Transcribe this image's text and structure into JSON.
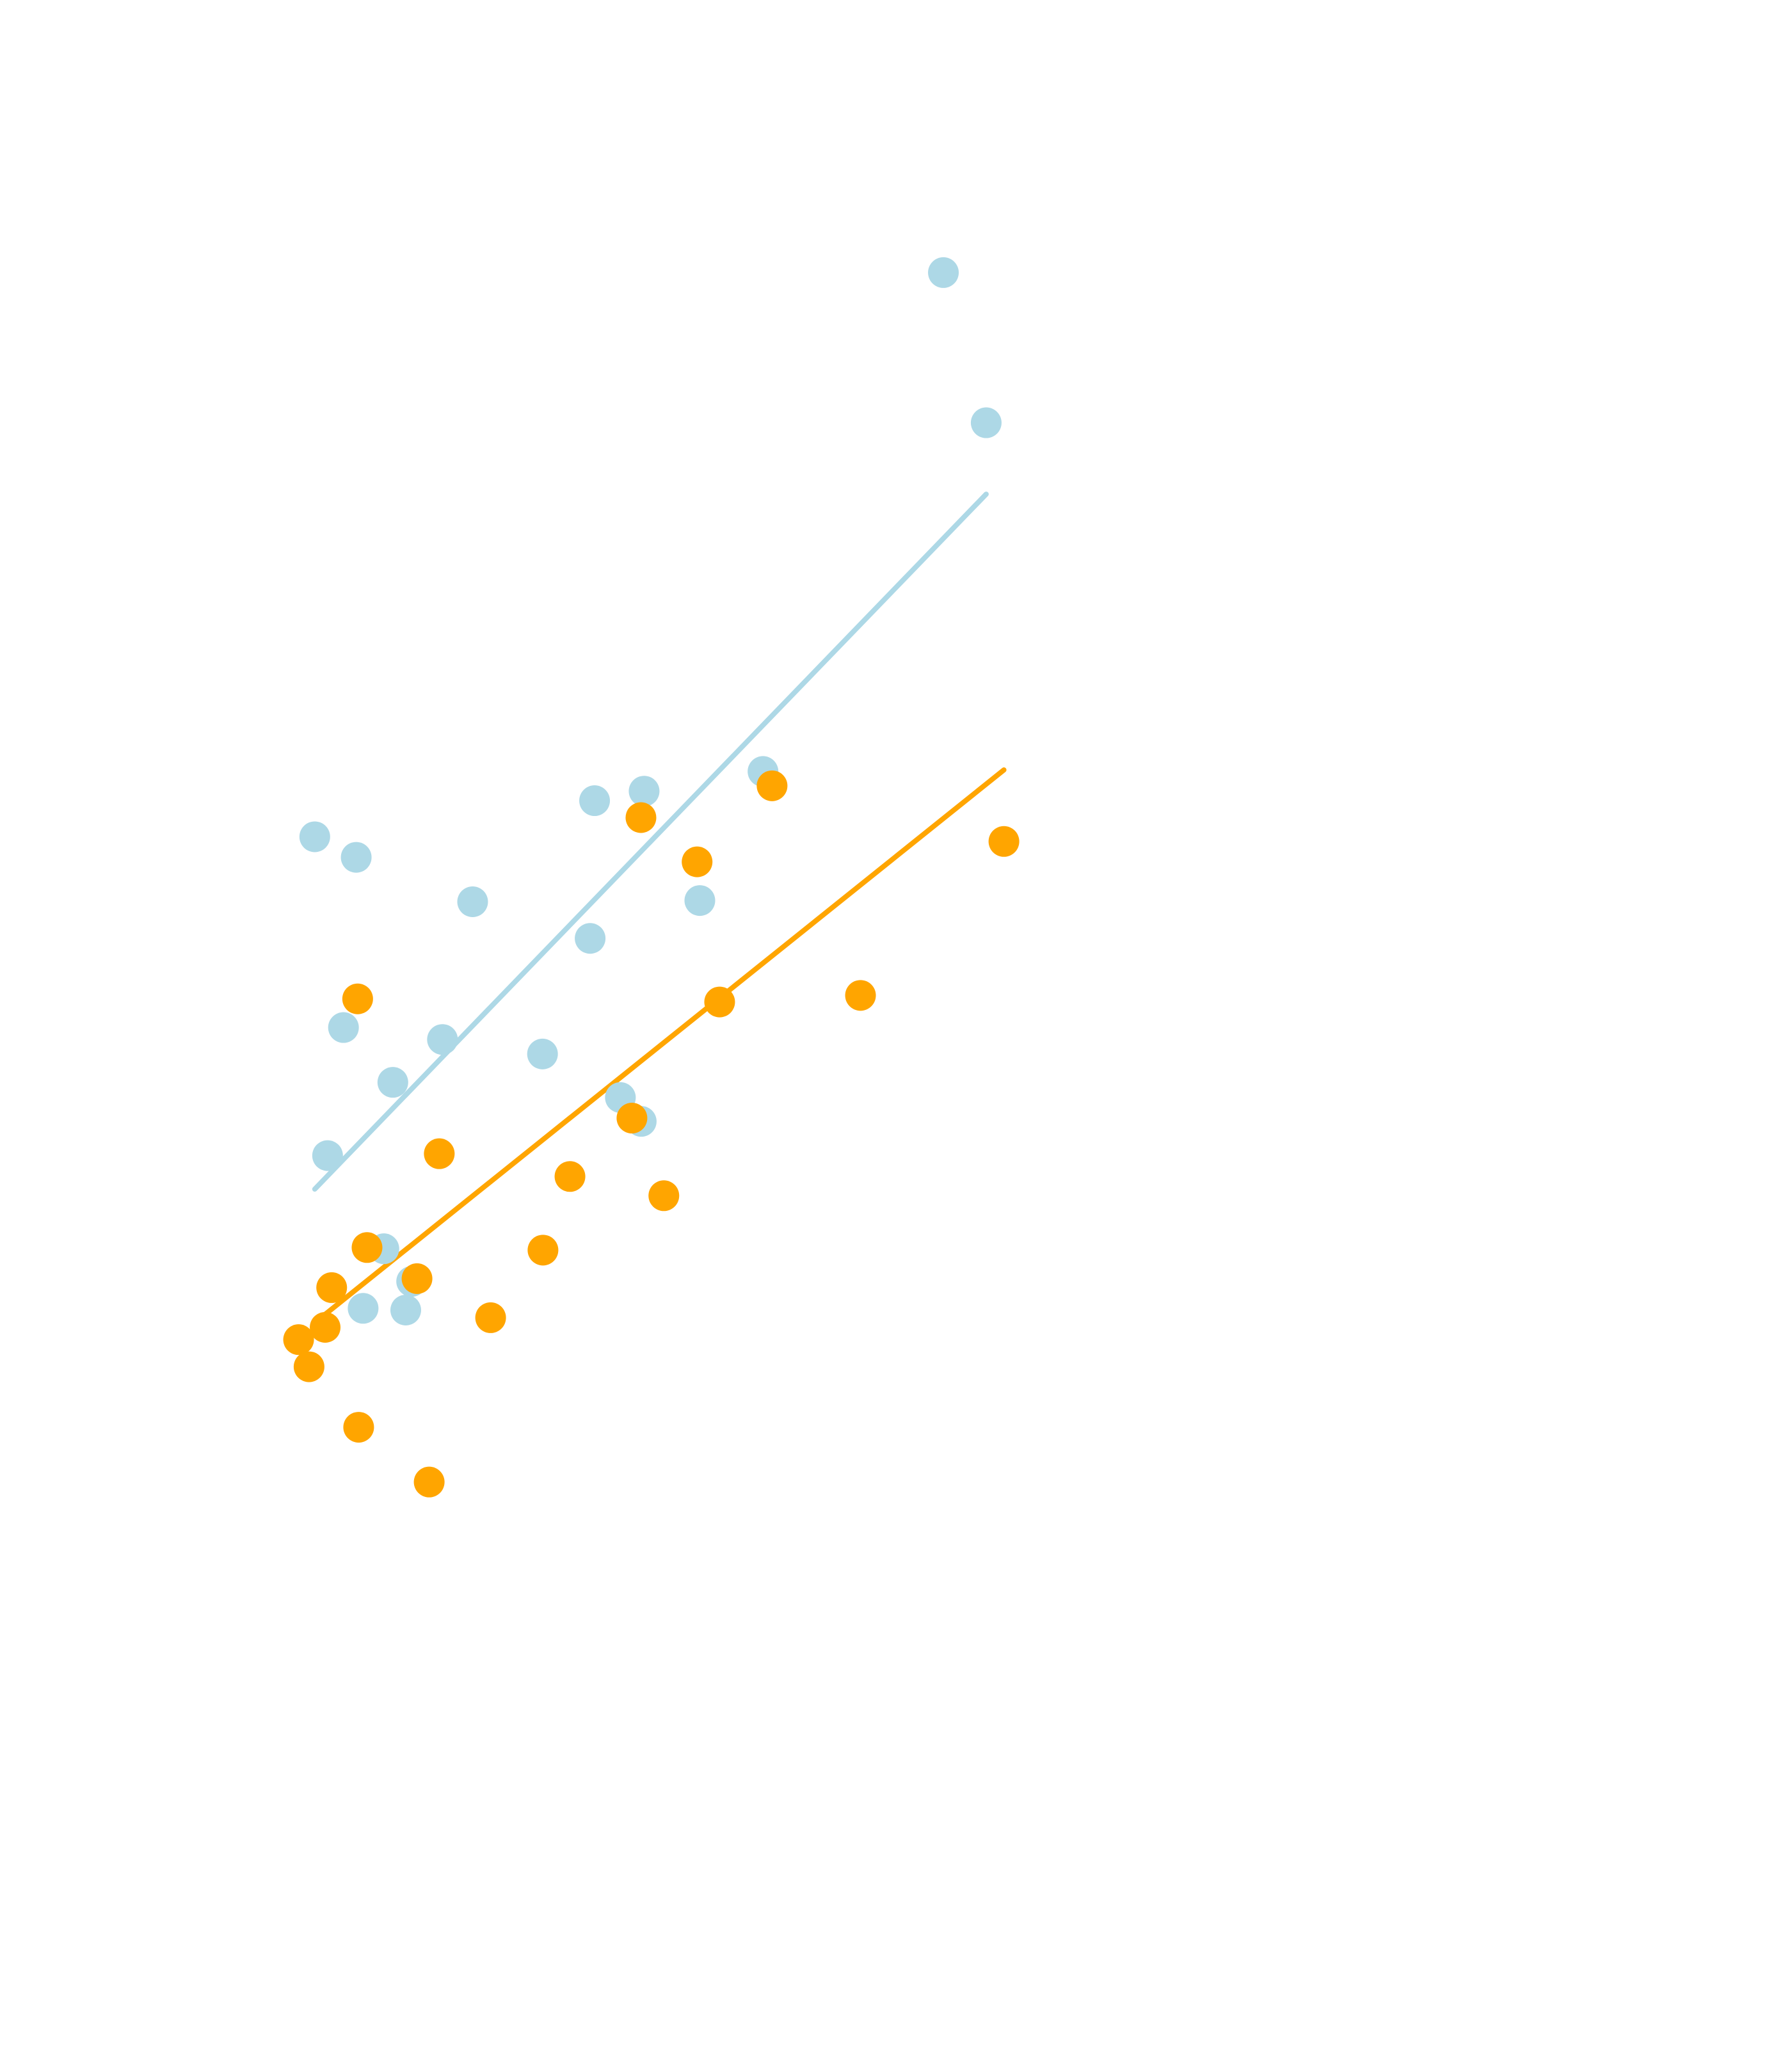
{
  "chart_data": {
    "type": "scatter",
    "title": "",
    "xlabel": "",
    "ylabel": "",
    "xlim": [
      0,
      100
    ],
    "ylim": [
      0,
      100
    ],
    "grid": false,
    "legend": "none",
    "series": [
      {
        "color": "#ADD8E6",
        "points": [
          {
            "x": 3.65,
            "y": 56.76
          },
          {
            "x": 8.21,
            "y": 55.57
          },
          {
            "x": 6.81,
            "y": 45.72
          },
          {
            "x": 5.06,
            "y": 38.31
          },
          {
            "x": 12.24,
            "y": 42.55
          },
          {
            "x": 17.7,
            "y": 45.03
          },
          {
            "x": 21.02,
            "y": 53.0
          },
          {
            "x": 28.71,
            "y": 44.19
          },
          {
            "x": 33.95,
            "y": 50.88
          },
          {
            "x": 34.44,
            "y": 58.85
          },
          {
            "x": 39.89,
            "y": 59.4
          },
          {
            "x": 37.28,
            "y": 41.67
          },
          {
            "x": 39.57,
            "y": 40.29
          },
          {
            "x": 46.02,
            "y": 53.07
          },
          {
            "x": 52.97,
            "y": 60.54
          },
          {
            "x": 72.82,
            "y": 89.41
          },
          {
            "x": 77.53,
            "y": 80.72
          },
          {
            "x": 11.25,
            "y": 32.92
          },
          {
            "x": 14.31,
            "y": 31.03
          },
          {
            "x": 8.97,
            "y": 29.47
          },
          {
            "x": 13.66,
            "y": 29.37
          }
        ],
        "trend": {
          "x": [
            3.65,
            77.53
          ],
          "y": [
            36.37,
            76.59
          ]
        }
      },
      {
        "color": "#FFA500",
        "points": [
          {
            "x": 1.87,
            "y": 27.66
          },
          {
            "x": 3.02,
            "y": 26.09
          },
          {
            "x": 4.79,
            "y": 28.37
          },
          {
            "x": 5.51,
            "y": 30.67
          },
          {
            "x": 8.37,
            "y": 47.38
          },
          {
            "x": 9.4,
            "y": 32.99
          },
          {
            "x": 8.48,
            "y": 22.59
          },
          {
            "x": 14.9,
            "y": 31.19
          },
          {
            "x": 17.35,
            "y": 38.42
          },
          {
            "x": 16.24,
            "y": 19.42
          },
          {
            "x": 23.0,
            "y": 28.93
          },
          {
            "x": 28.76,
            "y": 32.84
          },
          {
            "x": 31.73,
            "y": 37.1
          },
          {
            "x": 38.55,
            "y": 40.48
          },
          {
            "x": 42.06,
            "y": 35.99
          },
          {
            "x": 39.54,
            "y": 57.87
          },
          {
            "x": 45.72,
            "y": 55.31
          },
          {
            "x": 48.2,
            "y": 47.2
          },
          {
            "x": 53.97,
            "y": 59.71
          },
          {
            "x": 63.7,
            "y": 47.58
          },
          {
            "x": 79.48,
            "y": 56.49
          }
        ],
        "trend": {
          "x": [
            4.5,
            79.48
          ],
          "y": [
            29.0,
            60.63
          ]
        }
      }
    ]
  }
}
